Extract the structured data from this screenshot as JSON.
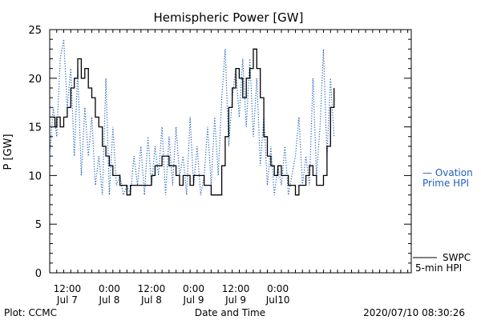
{
  "chart_data": {
    "type": "line",
    "title": "Hemispheric Power [GW]",
    "ylabel": "P [GW]",
    "xlabel": "Date and Time",
    "ylim": [
      0,
      25
    ],
    "xlim": [
      "2020-07-06 07:00",
      "2020-07-10 14:00"
    ],
    "y_ticks": [
      0,
      5,
      10,
      15,
      20,
      25
    ],
    "x_ticks": [
      {
        "at": "2020-07-06 12:00",
        "line1": "12:00",
        "line2": "Jul 7"
      },
      {
        "at": "2020-07-07 00:00",
        "line1": "0:00",
        "line2": "Jul 8"
      },
      {
        "at": "2020-07-07 12:00",
        "line1": "12:00",
        "line2": "Jul 8"
      },
      {
        "at": "2020-07-08 00:00",
        "line1": "0:00",
        "line2": "Jul 9"
      },
      {
        "at": "2020-07-08 12:00",
        "line1": "12:00",
        "line2": "Jul 9"
      },
      {
        "at": "2020-07-09 00:00",
        "line1": "0:00",
        "line2": "Jul10"
      }
    ],
    "grid": false,
    "series": [
      {
        "name": "SWPC 5-min HPI",
        "color": "#000000",
        "style": "solid",
        "points": [
          [
            "2020-07-06 07:00",
            16
          ],
          [
            "2020-07-06 08:00",
            16
          ],
          [
            "2020-07-06 08:30",
            15
          ],
          [
            "2020-07-06 09:00",
            16
          ],
          [
            "2020-07-06 10:00",
            15
          ],
          [
            "2020-07-06 11:00",
            16
          ],
          [
            "2020-07-06 12:00",
            17
          ],
          [
            "2020-07-06 13:00",
            19
          ],
          [
            "2020-07-06 14:00",
            20
          ],
          [
            "2020-07-06 15:00",
            22
          ],
          [
            "2020-07-06 16:00",
            20
          ],
          [
            "2020-07-06 17:00",
            21
          ],
          [
            "2020-07-06 18:00",
            19
          ],
          [
            "2020-07-06 19:00",
            18
          ],
          [
            "2020-07-06 20:00",
            16
          ],
          [
            "2020-07-06 21:00",
            15
          ],
          [
            "2020-07-06 22:00",
            13
          ],
          [
            "2020-07-06 23:00",
            12
          ],
          [
            "2020-07-07 00:00",
            11
          ],
          [
            "2020-07-07 01:00",
            10
          ],
          [
            "2020-07-07 02:00",
            10
          ],
          [
            "2020-07-07 03:00",
            9
          ],
          [
            "2020-07-07 04:00",
            9
          ],
          [
            "2020-07-07 05:00",
            8
          ],
          [
            "2020-07-07 06:00",
            9
          ],
          [
            "2020-07-07 07:00",
            9
          ],
          [
            "2020-07-07 08:00",
            9
          ],
          [
            "2020-07-07 09:00",
            9
          ],
          [
            "2020-07-07 10:00",
            9
          ],
          [
            "2020-07-07 11:00",
            9
          ],
          [
            "2020-07-07 12:00",
            10
          ],
          [
            "2020-07-07 13:00",
            11
          ],
          [
            "2020-07-07 14:00",
            11
          ],
          [
            "2020-07-07 15:00",
            12
          ],
          [
            "2020-07-07 16:00",
            12
          ],
          [
            "2020-07-07 17:00",
            11
          ],
          [
            "2020-07-07 18:00",
            11
          ],
          [
            "2020-07-07 19:00",
            10
          ],
          [
            "2020-07-07 20:00",
            9
          ],
          [
            "2020-07-07 21:00",
            10
          ],
          [
            "2020-07-07 22:00",
            10
          ],
          [
            "2020-07-07 23:00",
            9
          ],
          [
            "2020-07-08 00:00",
            10
          ],
          [
            "2020-07-08 01:00",
            10
          ],
          [
            "2020-07-08 02:00",
            10
          ],
          [
            "2020-07-08 03:00",
            9
          ],
          [
            "2020-07-08 04:00",
            9
          ],
          [
            "2020-07-08 05:00",
            8
          ],
          [
            "2020-07-08 06:00",
            8
          ],
          [
            "2020-07-08 07:00",
            8
          ],
          [
            "2020-07-08 08:00",
            11
          ],
          [
            "2020-07-08 09:00",
            14
          ],
          [
            "2020-07-08 10:00",
            17
          ],
          [
            "2020-07-08 11:00",
            19
          ],
          [
            "2020-07-08 12:00",
            21
          ],
          [
            "2020-07-08 13:00",
            20
          ],
          [
            "2020-07-08 14:00",
            18
          ],
          [
            "2020-07-08 15:00",
            20
          ],
          [
            "2020-07-08 16:00",
            21
          ],
          [
            "2020-07-08 17:00",
            23
          ],
          [
            "2020-07-08 18:00",
            21
          ],
          [
            "2020-07-08 19:00",
            18
          ],
          [
            "2020-07-08 20:00",
            14
          ],
          [
            "2020-07-08 21:00",
            12
          ],
          [
            "2020-07-08 22:00",
            11
          ],
          [
            "2020-07-08 23:00",
            10
          ],
          [
            "2020-07-09 00:00",
            11
          ],
          [
            "2020-07-09 01:00",
            10
          ],
          [
            "2020-07-09 02:00",
            10
          ],
          [
            "2020-07-09 03:00",
            9
          ],
          [
            "2020-07-09 04:00",
            9
          ],
          [
            "2020-07-09 05:00",
            8
          ],
          [
            "2020-07-09 06:00",
            9
          ],
          [
            "2020-07-09 07:00",
            9
          ],
          [
            "2020-07-09 08:00",
            10
          ],
          [
            "2020-07-09 09:00",
            11
          ],
          [
            "2020-07-09 10:00",
            10
          ],
          [
            "2020-07-09 11:00",
            9
          ],
          [
            "2020-07-09 12:00",
            9
          ],
          [
            "2020-07-09 13:00",
            10
          ],
          [
            "2020-07-09 14:00",
            13
          ],
          [
            "2020-07-09 15:00",
            17
          ],
          [
            "2020-07-09 16:00",
            19
          ]
        ]
      },
      {
        "name": "Ovation Prime HPI",
        "color": "#1f5fbf",
        "style": "dotted",
        "points": [
          [
            "2020-07-06 07:00",
            12
          ],
          [
            "2020-07-06 08:00",
            17
          ],
          [
            "2020-07-06 09:00",
            14
          ],
          [
            "2020-07-06 10:00",
            22
          ],
          [
            "2020-07-06 11:00",
            24
          ],
          [
            "2020-07-06 12:00",
            17
          ],
          [
            "2020-07-06 13:00",
            21
          ],
          [
            "2020-07-06 14:00",
            12
          ],
          [
            "2020-07-06 15:00",
            21
          ],
          [
            "2020-07-06 16:00",
            10
          ],
          [
            "2020-07-06 17:00",
            17
          ],
          [
            "2020-07-06 18:00",
            12
          ],
          [
            "2020-07-06 19:00",
            16
          ],
          [
            "2020-07-06 20:00",
            9
          ],
          [
            "2020-07-06 21:00",
            12
          ],
          [
            "2020-07-06 22:00",
            8
          ],
          [
            "2020-07-06 23:00",
            20
          ],
          [
            "2020-07-07 00:00",
            8
          ],
          [
            "2020-07-07 01:00",
            15
          ],
          [
            "2020-07-07 02:00",
            9
          ],
          [
            "2020-07-07 03:00",
            10
          ],
          [
            "2020-07-07 04:00",
            8
          ],
          [
            "2020-07-07 05:00",
            9
          ],
          [
            "2020-07-07 06:00",
            8
          ],
          [
            "2020-07-07 07:00",
            12
          ],
          [
            "2020-07-07 08:00",
            9
          ],
          [
            "2020-07-07 09:00",
            13
          ],
          [
            "2020-07-07 10:00",
            8
          ],
          [
            "2020-07-07 11:00",
            14
          ],
          [
            "2020-07-07 12:00",
            9
          ],
          [
            "2020-07-07 13:00",
            13
          ],
          [
            "2020-07-07 14:00",
            10
          ],
          [
            "2020-07-07 15:00",
            15
          ],
          [
            "2020-07-07 16:00",
            8
          ],
          [
            "2020-07-07 17:00",
            14
          ],
          [
            "2020-07-07 18:00",
            9
          ],
          [
            "2020-07-07 19:00",
            15
          ],
          [
            "2020-07-07 20:00",
            10
          ],
          [
            "2020-07-07 21:00",
            12
          ],
          [
            "2020-07-07 22:00",
            8
          ],
          [
            "2020-07-07 23:00",
            16
          ],
          [
            "2020-07-08 00:00",
            9
          ],
          [
            "2020-07-08 01:00",
            13
          ],
          [
            "2020-07-08 02:00",
            8
          ],
          [
            "2020-07-08 03:00",
            10
          ],
          [
            "2020-07-08 04:00",
            15
          ],
          [
            "2020-07-08 05:00",
            9
          ],
          [
            "2020-07-08 06:00",
            16
          ],
          [
            "2020-07-08 07:00",
            10
          ],
          [
            "2020-07-08 08:00",
            18
          ],
          [
            "2020-07-08 09:00",
            23
          ],
          [
            "2020-07-08 10:00",
            13
          ],
          [
            "2020-07-08 11:00",
            18
          ],
          [
            "2020-07-08 12:00",
            21
          ],
          [
            "2020-07-08 13:00",
            16
          ],
          [
            "2020-07-08 14:00",
            22
          ],
          [
            "2020-07-08 15:00",
            15
          ],
          [
            "2020-07-08 16:00",
            22
          ],
          [
            "2020-07-08 17:00",
            14
          ],
          [
            "2020-07-08 18:00",
            20
          ],
          [
            "2020-07-08 19:00",
            11
          ],
          [
            "2020-07-08 20:00",
            16
          ],
          [
            "2020-07-08 21:00",
            9
          ],
          [
            "2020-07-08 22:00",
            13
          ],
          [
            "2020-07-08 23:00",
            8
          ],
          [
            "2020-07-09 00:00",
            11
          ],
          [
            "2020-07-09 01:00",
            9
          ],
          [
            "2020-07-09 02:00",
            13
          ],
          [
            "2020-07-09 03:00",
            8
          ],
          [
            "2020-07-09 04:00",
            10
          ],
          [
            "2020-07-09 05:00",
            12
          ],
          [
            "2020-07-09 06:00",
            16
          ],
          [
            "2020-07-09 07:00",
            9
          ],
          [
            "2020-07-09 08:00",
            12
          ],
          [
            "2020-07-09 09:00",
            9
          ],
          [
            "2020-07-09 10:00",
            20
          ],
          [
            "2020-07-09 11:00",
            10
          ],
          [
            "2020-07-09 12:00",
            15
          ],
          [
            "2020-07-09 13:00",
            23
          ],
          [
            "2020-07-09 14:00",
            12
          ],
          [
            "2020-07-09 15:00",
            20
          ],
          [
            "2020-07-09 16:00",
            14
          ]
        ]
      }
    ]
  },
  "legend": {
    "ovation_line1": "— Ovation",
    "ovation_line2": "Prime HPI",
    "swpc_line1": "SWPC",
    "swpc_line2": "5-min HPI"
  },
  "footer": {
    "plot_credit": "Plot: CCMC",
    "timestamp": "2020/07/10 08:30:26"
  }
}
